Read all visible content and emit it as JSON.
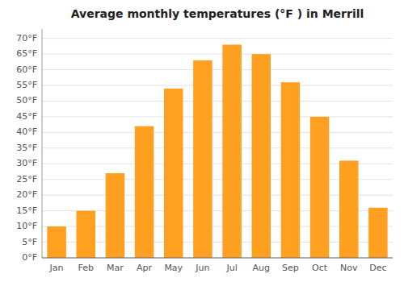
{
  "chart_data": {
    "type": "bar",
    "title": "Average monthly temperatures (°F ) in Merrill",
    "categories": [
      "Jan",
      "Feb",
      "Mar",
      "Apr",
      "May",
      "Jun",
      "Jul",
      "Aug",
      "Sep",
      "Oct",
      "Nov",
      "Dec"
    ],
    "values": [
      10,
      15,
      27,
      42,
      54,
      63,
      68,
      65,
      56,
      45,
      31,
      16
    ],
    "color": "#FFA020",
    "ylim": [
      0,
      73
    ],
    "yticks": [
      {
        "value": 0,
        "label": "0°F"
      },
      {
        "value": 5,
        "label": "5°F"
      },
      {
        "value": 10,
        "label": "10°F"
      },
      {
        "value": 15,
        "label": "15°F"
      },
      {
        "value": 20,
        "label": "20°F"
      },
      {
        "value": 25,
        "label": "25°F"
      },
      {
        "value": 30,
        "label": "30°F"
      },
      {
        "value": 35,
        "label": "35°F"
      },
      {
        "value": 40,
        "label": "40°F"
      },
      {
        "value": 45,
        "label": "45°F"
      },
      {
        "value": 50,
        "label": "50°F"
      },
      {
        "value": 55,
        "label": "55°F"
      },
      {
        "value": 60,
        "label": "60°F"
      },
      {
        "value": 65,
        "label": "65°F"
      },
      {
        "value": 70,
        "label": "70°F"
      }
    ],
    "grid": true
  }
}
